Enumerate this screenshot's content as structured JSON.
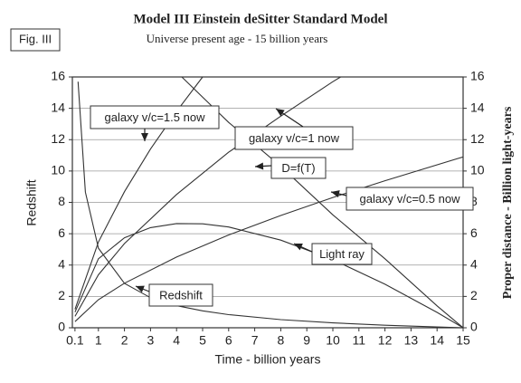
{
  "chart_data": {
    "type": "line",
    "figure_label": "Fig. III",
    "title": "Model III   Einstein deSitter Standard Model",
    "subtitle": "Universe present age - 15 billion years",
    "x_label": "Time - billion years",
    "y_label": "Redshift",
    "y2_label": "Proper distance - Billion light-years",
    "xlim": [
      0,
      15
    ],
    "xticks": [
      0.1,
      1,
      2,
      3,
      4,
      5,
      6,
      7,
      8,
      9,
      10,
      11,
      12,
      13,
      14,
      15
    ],
    "ylim": [
      0,
      16
    ],
    "yticks": [
      0,
      2,
      4,
      6,
      8,
      10,
      12,
      14,
      16
    ],
    "y2lim": [
      0,
      16
    ],
    "y2ticks": [
      0,
      2,
      4,
      6,
      8,
      10,
      12,
      14,
      16
    ],
    "grid": true,
    "series": [
      {
        "color": "#333333",
        "x": [
          0.22,
          0.5,
          1,
          2,
          3,
          4,
          5,
          6,
          8,
          10,
          12,
          15
        ],
        "values": [
          15.7,
          8.65,
          5.08,
          2.83,
          1.92,
          1.41,
          1.08,
          0.84,
          0.52,
          0.31,
          0.16,
          0
        ]
      },
      {
        "color": "#333333",
        "axis": "y2",
        "x": [
          0.1,
          1,
          2,
          3,
          4,
          5,
          6,
          8,
          10,
          12,
          14,
          15
        ],
        "values": [
          1.0,
          4.4,
          5.74,
          6.39,
          6.65,
          6.63,
          6.43,
          5.59,
          4.35,
          2.78,
          0.98,
          0
        ]
      },
      {
        "color": "#333333",
        "axis": "y2",
        "x": [
          0.1,
          1,
          2,
          4,
          6,
          8,
          10,
          12,
          15
        ],
        "values": [
          0.39,
          1.79,
          2.84,
          4.51,
          5.92,
          7.16,
          8.31,
          9.38,
          10.9
        ]
      },
      {
        "color": "#333333",
        "axis": "y2",
        "x": [
          0.1,
          1,
          2,
          4,
          6,
          8,
          10,
          10.3
        ],
        "values": [
          0.73,
          3.38,
          5.37,
          8.5,
          11.2,
          13.5,
          15.7,
          16
        ]
      },
      {
        "color": "#333333",
        "axis": "y2",
        "x": [
          0.1,
          1,
          2,
          3,
          4,
          5
        ],
        "values": [
          1.18,
          5.47,
          8.68,
          11.4,
          13.8,
          16
        ]
      },
      {
        "color": "#333333",
        "axis": "y2",
        "x": [
          4.2,
          6,
          8,
          10,
          12,
          14,
          15
        ],
        "values": [
          16,
          13.1,
          10.3,
          7.2,
          4.4,
          1.4,
          0
        ]
      }
    ],
    "annotations": [
      "Redshift",
      "Light ray",
      "galaxy v/c=0.5 now",
      "galaxy v/c=1 now",
      "galaxy v/c=1.5 now",
      "D=f(T)"
    ]
  }
}
